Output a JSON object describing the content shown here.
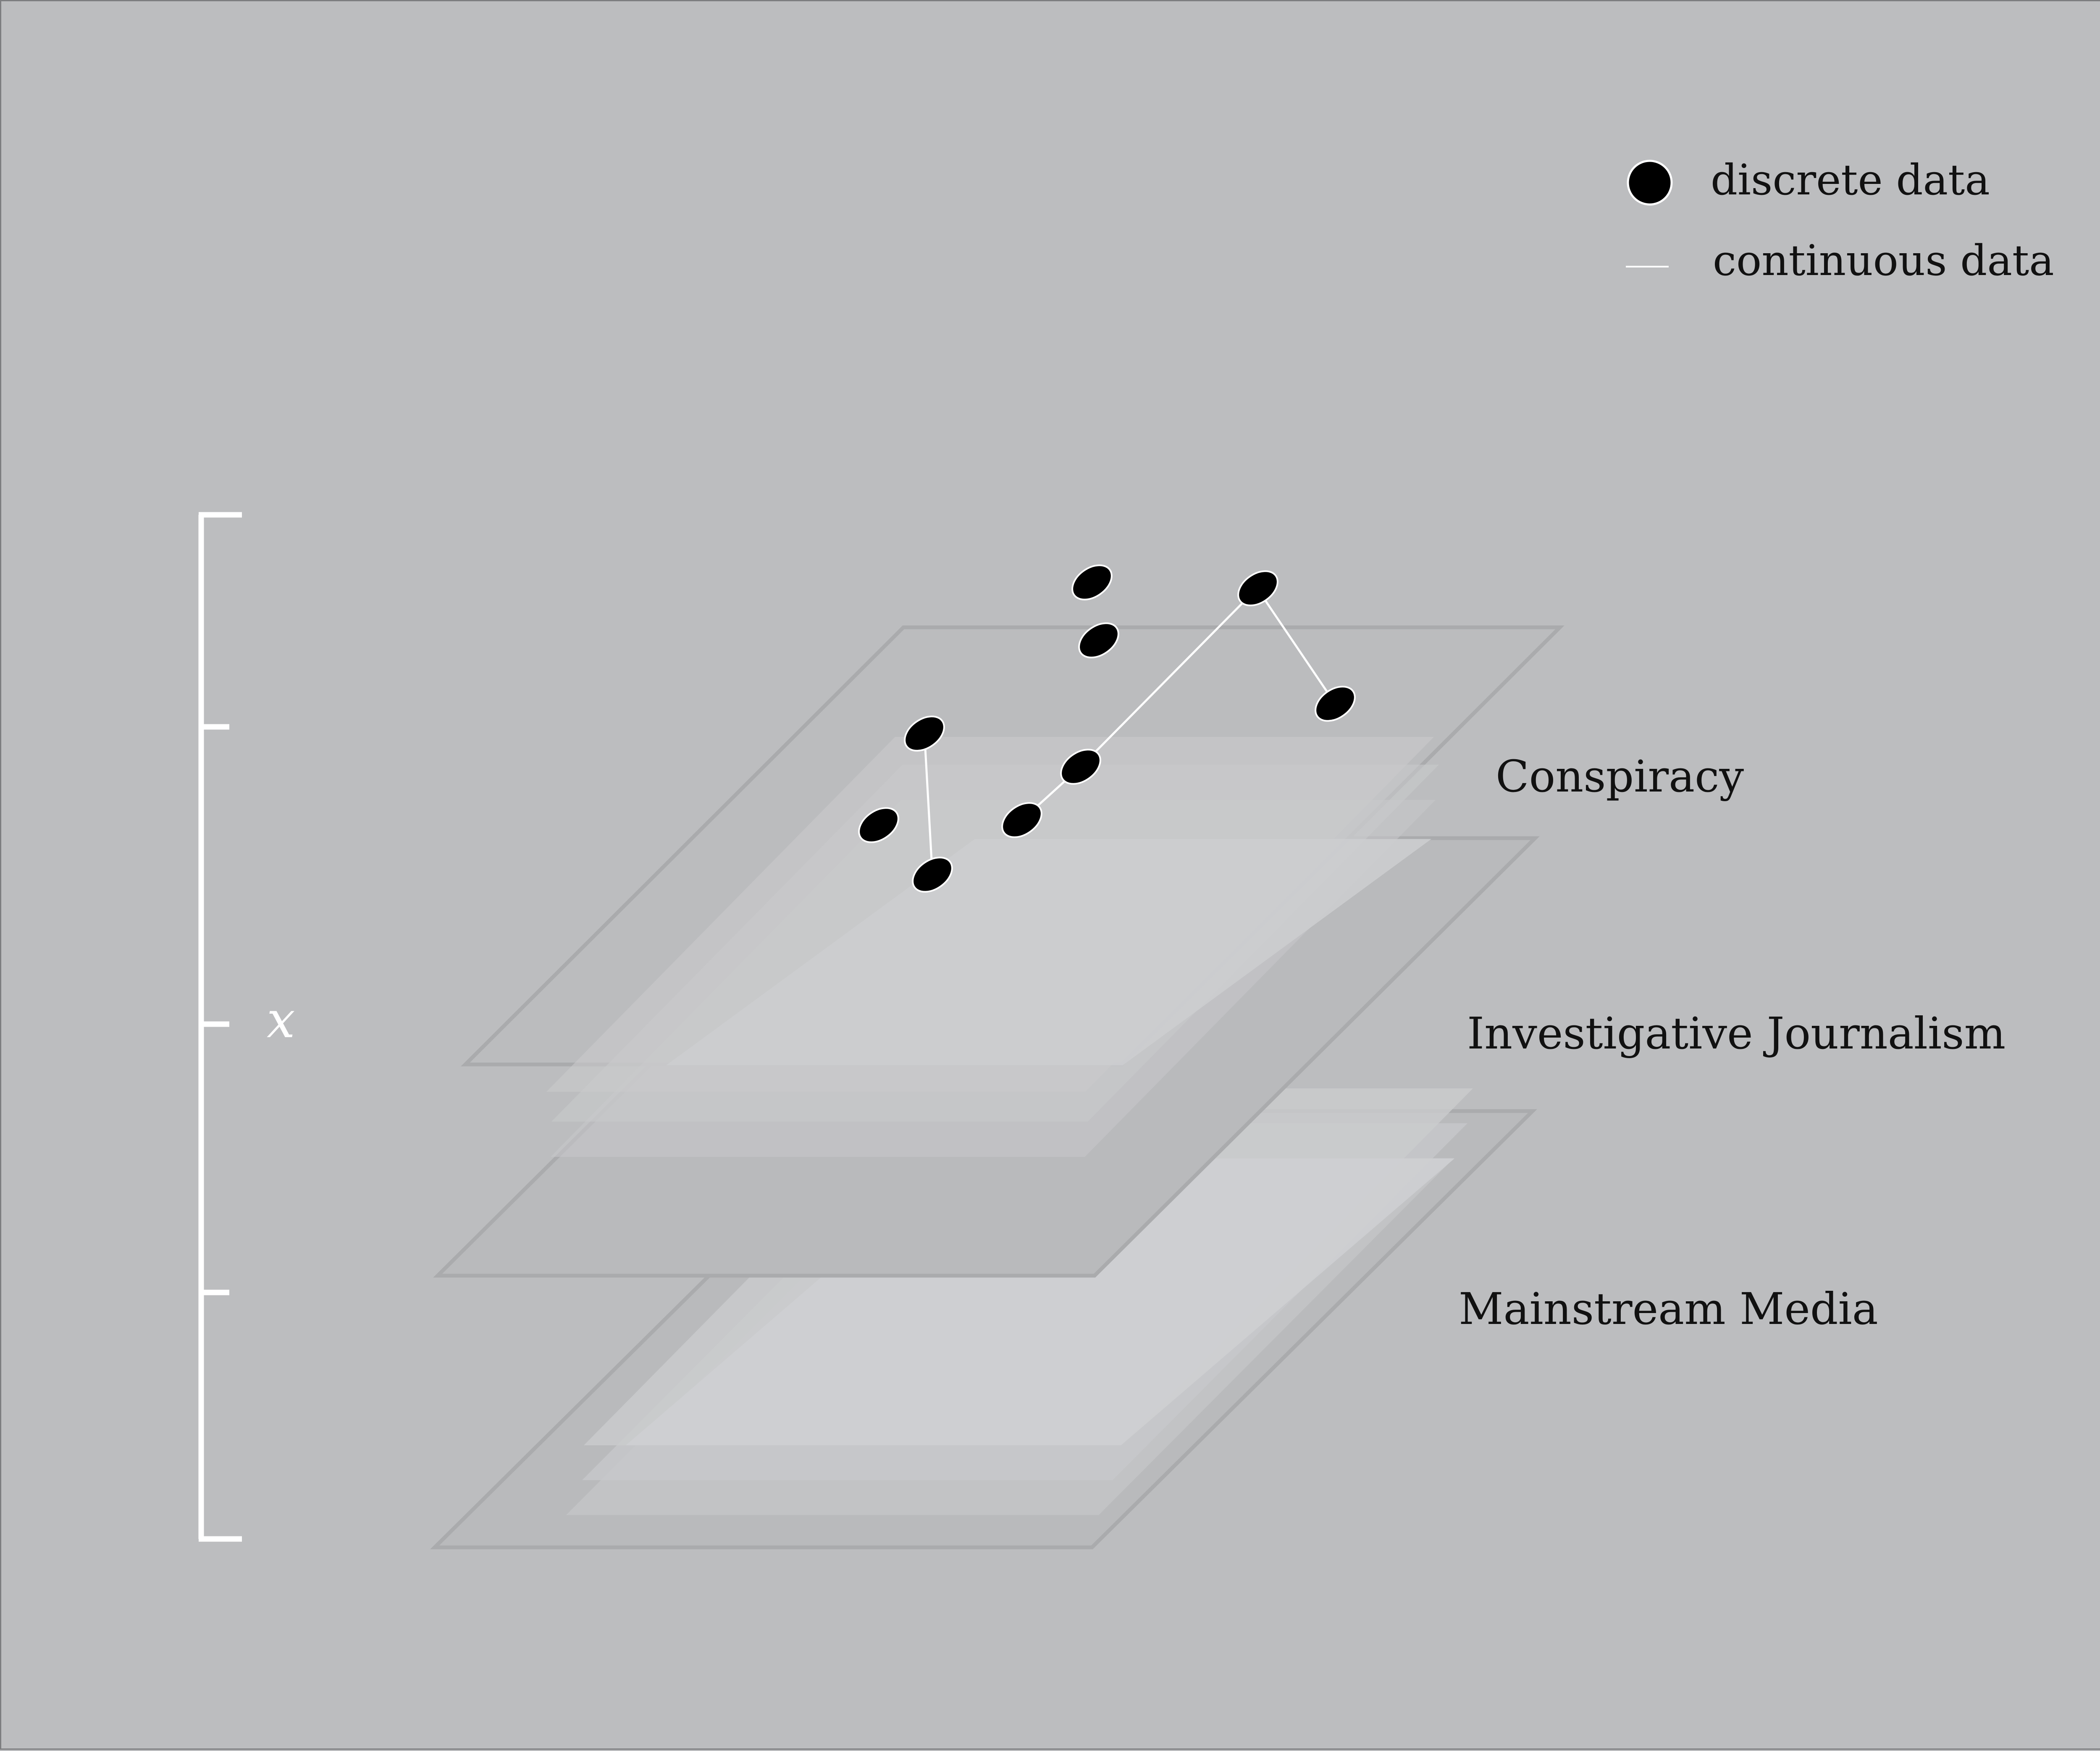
{
  "legend": {
    "discrete_label": "discrete data",
    "continuous_label": "continuous data"
  },
  "axis": {
    "variable": "x"
  },
  "layers": [
    {
      "key": "conspiracy",
      "label": "Conspiracy"
    },
    {
      "key": "investigative",
      "label": "Investigative Journalism"
    },
    {
      "key": "mainstream",
      "label": "Mainstream Media"
    }
  ],
  "colors": {
    "background": "#bcbdbf",
    "plane_edge": "#a9aaac",
    "plane_inner": "#cfd0d2",
    "axis": "#ffffff",
    "point": "#000000",
    "connector": "#ffffff"
  }
}
